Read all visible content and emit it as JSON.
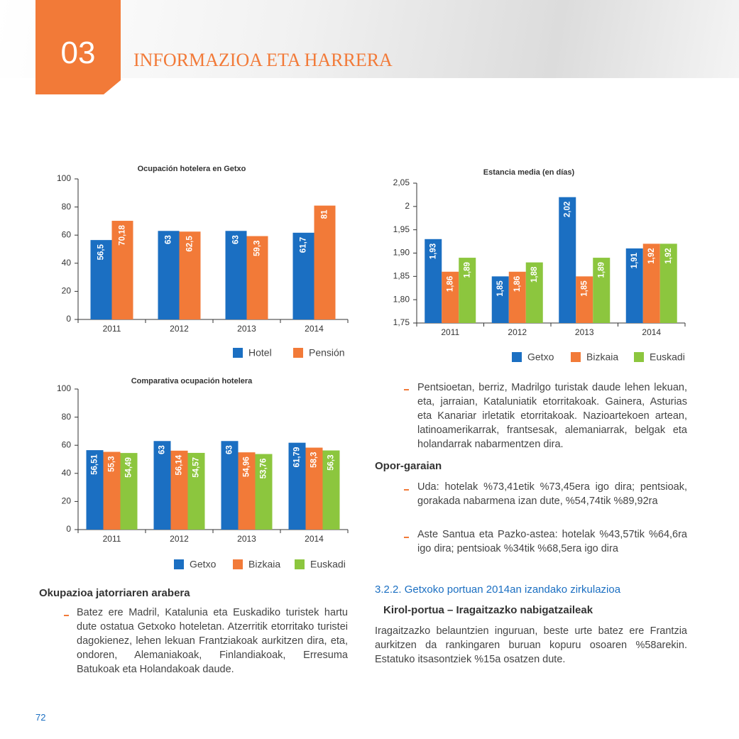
{
  "header": {
    "number": "03",
    "title": "INFORMAZIOA ETA HARRERA"
  },
  "chart_data": [
    {
      "type": "bar",
      "title": "Ocupación hotelera en Getxo",
      "categories": [
        "2011",
        "2012",
        "2013",
        "2014"
      ],
      "series": [
        {
          "name": "Hotel",
          "color": "#1b6fc2",
          "values": [
            56.5,
            63,
            63,
            61.7
          ],
          "value_labels": [
            "56,5",
            "63",
            "63",
            "61,7"
          ]
        },
        {
          "name": "Pensión",
          "color": "#f27a38",
          "values": [
            70.18,
            62.5,
            59.3,
            81
          ],
          "value_labels": [
            "70,18",
            "62,5",
            "59,3",
            "81"
          ]
        }
      ],
      "ylim": [
        0,
        100
      ],
      "yticks": [
        0,
        20,
        40,
        60,
        80,
        100
      ]
    },
    {
      "type": "bar",
      "title": "Estancia media (en días)",
      "categories": [
        "2011",
        "2012",
        "2013",
        "2014"
      ],
      "series": [
        {
          "name": "Getxo",
          "color": "#1b6fc2",
          "values": [
            1.93,
            1.85,
            2.02,
            1.91
          ],
          "value_labels": [
            "1,93",
            "1,85",
            "2,02",
            "1,91"
          ]
        },
        {
          "name": "Bizkaia",
          "color": "#f27a38",
          "values": [
            1.86,
            1.86,
            1.85,
            1.92
          ],
          "value_labels": [
            "1,86",
            "1,86",
            "1,85",
            "1,92"
          ]
        },
        {
          "name": "Euskadi",
          "color": "#8cc63e",
          "values": [
            1.89,
            1.88,
            1.89,
            1.92
          ],
          "value_labels": [
            "1,89",
            "1,88",
            "1,89",
            "1,92"
          ]
        }
      ],
      "ylim": [
        1.75,
        2.05
      ],
      "yticks": [
        {
          "value": 1.75,
          "label": "1,75"
        },
        {
          "value": 1.8,
          "label": "1,80"
        },
        {
          "value": 1.85,
          "label": "1,85"
        },
        {
          "value": 1.9,
          "label": "1,90"
        },
        {
          "value": 1.95,
          "label": "1,95"
        },
        2,
        {
          "value": 2.05,
          "label": "2,05"
        }
      ]
    },
    {
      "type": "bar",
      "title": "Comparativa ocupación hotelera",
      "categories": [
        "2011",
        "2012",
        "2013",
        "2014"
      ],
      "series": [
        {
          "name": "Getxo",
          "color": "#1b6fc2",
          "values": [
            56.51,
            63,
            63,
            61.79
          ],
          "value_labels": [
            "56,51",
            "63",
            "63",
            "61,79"
          ]
        },
        {
          "name": "Bizkaia",
          "color": "#f27a38",
          "values": [
            55.3,
            56.14,
            54.96,
            58.3
          ],
          "value_labels": [
            "55,3",
            "56,14",
            "54,96",
            "58,3"
          ]
        },
        {
          "name": "Euskadi",
          "color": "#8cc63e",
          "values": [
            54.49,
            54.57,
            53.76,
            56.3
          ],
          "value_labels": [
            "54,49",
            "54,57",
            "53,76",
            "56,3"
          ]
        }
      ],
      "ylim": [
        0,
        100
      ],
      "yticks": [
        0,
        20,
        40,
        60,
        80,
        100
      ]
    }
  ],
  "left": {
    "heading": "Okupazioa jatorriaren arabera",
    "bullets": [
      "Batez ere Madril, Katalunia eta Euskadiko turistek hartu dute ostatua Getxoko hoteletan. Atzerritik etorritako turistei dagokienez, lehen lekuan Frantziakoak aurkitzen dira, eta, ondoren, Alemaniakoak, Finlandiakoak, Erresuma Batukoak eta Holandakoak daude."
    ]
  },
  "right": {
    "bullet": "Pentsioetan, berriz, Madrilgo turistak daude lehen lekuan, eta, jarraian, Kataluniatik etorritakoak. Gainera, Asturias eta Kanariar irletatik etorritakoak. Nazioartekoen artean, latinoamerikarrak, frantsesak, alemaniarrak, belgak eta holandarrak nabarmentzen dira.",
    "heading": "Opor-garaian",
    "bullets": [
      "Uda: hotelak %73,41etik %73,45era igo dira; pentsioak, gorakada nabarmena izan dute, %54,74tik %89,92ra",
      "Aste Santua eta Pazko-astea: hotelak %43,57tik %64,6ra igo dira; pentsioak %34tik %68,5era igo dira"
    ],
    "section": "3.2.2. Getxoko portuan 2014an izandako zirkulazioa",
    "subheading": "Kirol-portua – Iragaitzazko nabigatzaileak",
    "paragraph": "Iragaitzazko belauntzien inguruan, beste urte batez ere Frantzia aurkitzen da rankingaren buruan kopuru osoaren %58arekin. Estatuko itsasontziek %15a osatzen dute."
  },
  "page_number": "72"
}
